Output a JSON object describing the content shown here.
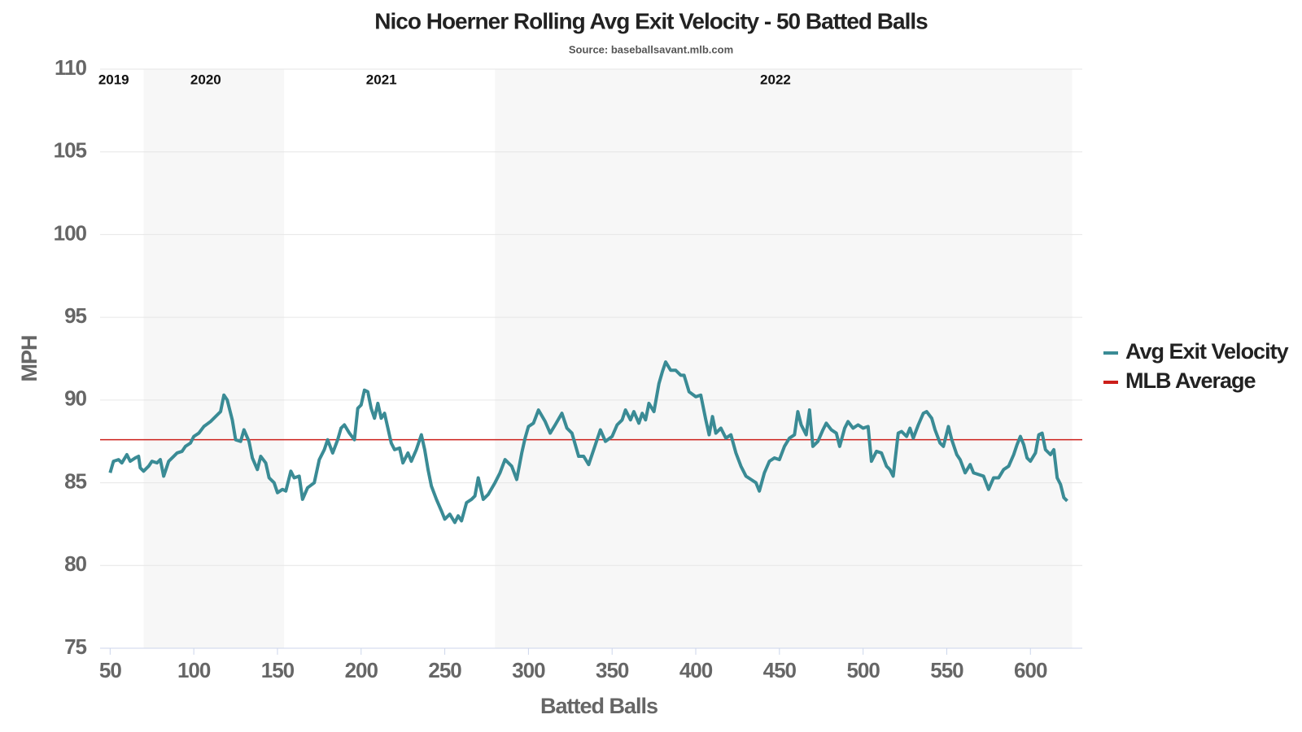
{
  "chart_data": {
    "type": "line",
    "title": "Nico Hoerner Rolling Avg Exit Velocity - 50 Batted Balls",
    "subtitle": "Source: baseballsavant.mlb.com",
    "x_label": "Batted Balls",
    "y_label": "MPH",
    "xlim": [
      44,
      631
    ],
    "ylim": [
      75,
      110
    ],
    "xticks": [
      50,
      100,
      150,
      200,
      250,
      300,
      350,
      400,
      450,
      500,
      550,
      600
    ],
    "yticks": [
      75,
      80,
      85,
      90,
      95,
      100,
      105,
      110
    ],
    "grid": true,
    "legend": "right",
    "seasons": [
      {
        "label": "2019",
        "start": 44,
        "end": 70,
        "shaded": false
      },
      {
        "label": "2020",
        "start": 70,
        "end": 154,
        "shaded": true
      },
      {
        "label": "2021",
        "start": 154,
        "end": 280,
        "shaded": false
      },
      {
        "label": "2022",
        "start": 280,
        "end": 625,
        "shaded": true
      }
    ],
    "reference_lines": [
      {
        "name": "MLB Average",
        "color": "#cc1f1a",
        "value": 87.6
      }
    ],
    "x": [
      50,
      52,
      55,
      57,
      60,
      62,
      65,
      67,
      68,
      70,
      73,
      75,
      78,
      80,
      82,
      85,
      88,
      90,
      93,
      95,
      98,
      100,
      103,
      106,
      110,
      113,
      116,
      118,
      120,
      123,
      125,
      128,
      130,
      133,
      135,
      138,
      140,
      143,
      145,
      148,
      150,
      153,
      155,
      158,
      160,
      163,
      165,
      168,
      172,
      175,
      178,
      180,
      183,
      186,
      188,
      190,
      193,
      196,
      198,
      200,
      202,
      204,
      206,
      208,
      210,
      212,
      214,
      216,
      218,
      220,
      223,
      225,
      228,
      230,
      233,
      236,
      238,
      240,
      242,
      245,
      248,
      250,
      253,
      256,
      258,
      260,
      263,
      266,
      268,
      270,
      273,
      276,
      280,
      283,
      286,
      290,
      293,
      296,
      298,
      300,
      303,
      306,
      310,
      313,
      316,
      320,
      323,
      326,
      330,
      333,
      336,
      340,
      343,
      346,
      350,
      353,
      356,
      358,
      361,
      363,
      366,
      368,
      370,
      372,
      375,
      378,
      380,
      382,
      385,
      388,
      391,
      393,
      396,
      400,
      403,
      406,
      408,
      410,
      412,
      415,
      418,
      421,
      424,
      427,
      430,
      433,
      436,
      438,
      441,
      444,
      447,
      450,
      453,
      456,
      459,
      461,
      463,
      466,
      468,
      470,
      473,
      476,
      478,
      481,
      484,
      486,
      489,
      491,
      494,
      497,
      500,
      503,
      505,
      508,
      511,
      514,
      516,
      518,
      521,
      523,
      526,
      528,
      530,
      533,
      536,
      538,
      541,
      543,
      546,
      548,
      551,
      553,
      556,
      558,
      561,
      564,
      566,
      569,
      572,
      575,
      578,
      581,
      584,
      587,
      590,
      592,
      594,
      596,
      598,
      600,
      603,
      605,
      607,
      609,
      612,
      614,
      616,
      618,
      620,
      622
    ],
    "series": [
      {
        "name": "Avg Exit Velocity",
        "color": "#3a8b95",
        "values": [
          85.6,
          86.3,
          86.4,
          86.2,
          86.7,
          86.3,
          86.5,
          86.6,
          85.9,
          85.7,
          86.0,
          86.3,
          86.2,
          86.4,
          85.4,
          86.3,
          86.6,
          86.8,
          86.9,
          87.2,
          87.4,
          87.8,
          88.0,
          88.4,
          88.7,
          89.0,
          89.3,
          90.3,
          90.0,
          88.8,
          87.6,
          87.5,
          88.2,
          87.5,
          86.5,
          85.8,
          86.6,
          86.2,
          85.3,
          85.0,
          84.4,
          84.6,
          84.5,
          85.7,
          85.3,
          85.4,
          84.0,
          84.7,
          85.0,
          86.4,
          87.0,
          87.6,
          86.8,
          87.6,
          88.3,
          88.5,
          88.0,
          87.6,
          89.5,
          89.7,
          90.6,
          90.5,
          89.5,
          88.9,
          89.8,
          88.9,
          89.2,
          88.3,
          87.4,
          87.0,
          87.1,
          86.2,
          86.8,
          86.3,
          87.0,
          87.9,
          87.0,
          85.8,
          84.8,
          84.0,
          83.3,
          82.8,
          83.1,
          82.6,
          83.0,
          82.7,
          83.8,
          84.0,
          84.2,
          85.3,
          84.0,
          84.3,
          85.0,
          85.6,
          86.4,
          86.0,
          85.2,
          86.8,
          87.7,
          88.4,
          88.6,
          89.4,
          88.7,
          88.0,
          88.5,
          89.2,
          88.3,
          88.0,
          86.6,
          86.6,
          86.1,
          87.3,
          88.2,
          87.5,
          87.8,
          88.5,
          88.8,
          89.4,
          88.8,
          89.3,
          88.6,
          89.2,
          88.8,
          89.8,
          89.3,
          91.0,
          91.7,
          92.3,
          91.8,
          91.8,
          91.5,
          91.5,
          90.5,
          90.2,
          90.3,
          88.8,
          87.9,
          89.0,
          88.0,
          88.3,
          87.7,
          87.9,
          86.8,
          86.0,
          85.4,
          85.2,
          85.0,
          84.5,
          85.6,
          86.3,
          86.5,
          86.4,
          87.2,
          87.7,
          87.9,
          89.3,
          88.5,
          87.9,
          89.4,
          87.2,
          87.5,
          88.2,
          88.6,
          88.2,
          88.0,
          87.2,
          88.3,
          88.7,
          88.3,
          88.5,
          88.3,
          88.4,
          86.3,
          86.9,
          86.8,
          86.0,
          85.8,
          85.4,
          88.0,
          88.1,
          87.8,
          88.3,
          87.7,
          88.5,
          89.2,
          89.3,
          88.9,
          88.2,
          87.4,
          87.2,
          88.4,
          87.6,
          86.7,
          86.4,
          85.6,
          86.1,
          85.6,
          85.5,
          85.4,
          84.6,
          85.3,
          85.3,
          85.8,
          86.0,
          86.7,
          87.3,
          87.8,
          87.3,
          86.5,
          86.3,
          86.8,
          87.9,
          88.0,
          87.0,
          86.7,
          87.0,
          85.3,
          84.9,
          84.1,
          83.9
        ]
      }
    ]
  }
}
